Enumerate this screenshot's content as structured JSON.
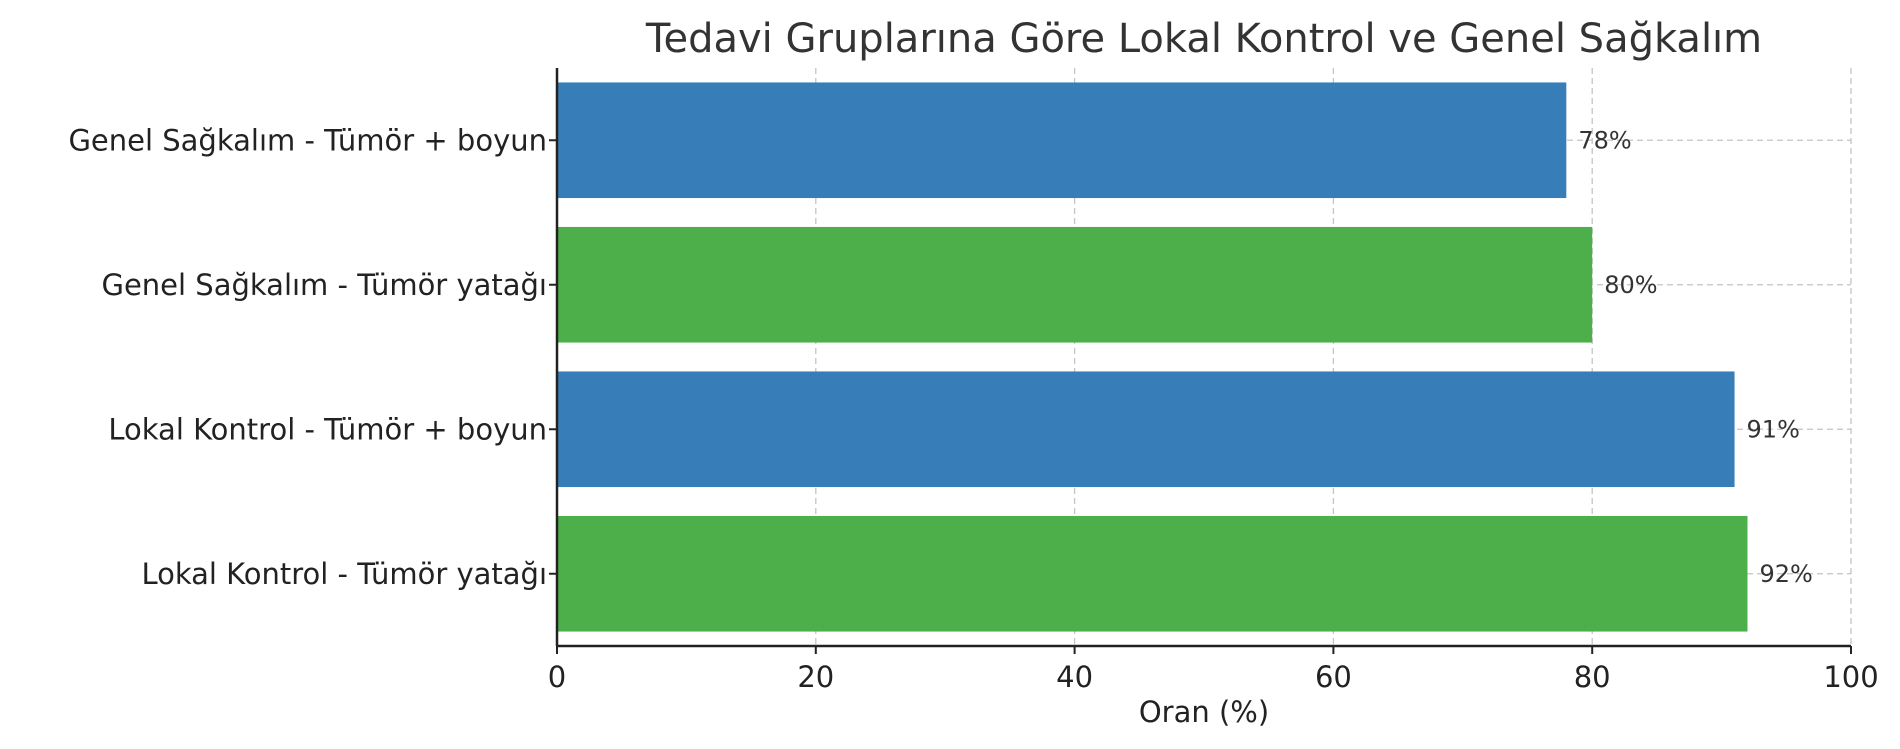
{
  "chart_data": {
    "type": "bar",
    "orientation": "horizontal",
    "title": "Tedavi Gruplarına Göre Lokal Kontrol ve Genel Sağkalım",
    "xlabel": "Oran (%)",
    "ylabel": "",
    "xlim": [
      0,
      100
    ],
    "xticks": [
      0,
      20,
      40,
      60,
      80,
      100
    ],
    "grid": true,
    "categories": [
      "Genel Sağkalım - Tümör + boyun",
      "Genel Sağkalım - Tümör yatağı",
      "Lokal Kontrol - Tümör + boyun",
      "Lokal Kontrol - Tümör yatağı"
    ],
    "values": [
      78,
      80,
      91,
      92
    ],
    "value_labels": [
      "78%",
      "80%",
      "91%",
      "92%"
    ],
    "bar_colors": [
      "#377eb8",
      "#4daf4a",
      "#377eb8",
      "#4daf4a"
    ]
  }
}
